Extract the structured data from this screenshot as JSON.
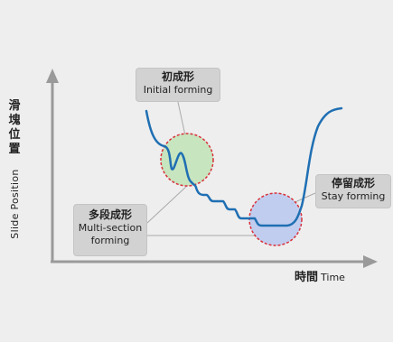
{
  "labels": {
    "initial": {
      "cn": "初成形",
      "en": "Initial forming"
    },
    "multi": {
      "cn": "多段成形",
      "en_line1": "Multi-section",
      "en_line2": "forming"
    },
    "stay": {
      "cn": "停留成形",
      "en": "Stay forming"
    }
  },
  "axes": {
    "y_cn": "滑塊位置",
    "y_en": "Slide  Position",
    "x_cn": "時間",
    "x_en": "Time"
  },
  "colors": {
    "curve": "#1f6fb3",
    "axis": "#9a9a9a",
    "circle_dash": "#d9303a",
    "initial_fill": "#bfe3b6",
    "stay_fill": "#b9c7ef",
    "label_box": "#d2d2d2"
  }
}
